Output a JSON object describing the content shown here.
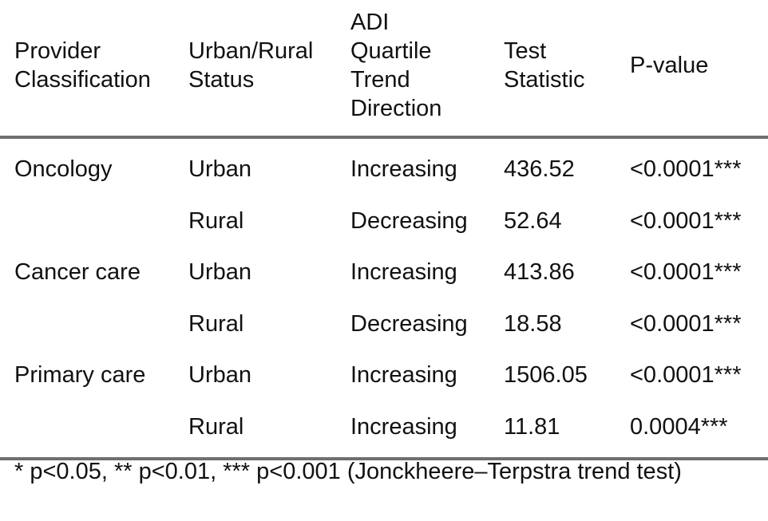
{
  "table": {
    "headers": [
      "Provider Classification",
      "Urban/Rural Status",
      "ADI Quartile Trend Direction",
      "Test Statistic",
      "P-value"
    ],
    "rows": [
      [
        "Oncology",
        "Urban",
        "Increasing",
        "436.52",
        "<0.0001***"
      ],
      [
        "",
        "Rural",
        "Decreasing",
        "52.64",
        "<0.0001***"
      ],
      [
        "Cancer care",
        "Urban",
        "Increasing",
        "413.86",
        "<0.0001***"
      ],
      [
        "",
        "Rural",
        "Decreasing",
        "18.58",
        "<0.0001***"
      ],
      [
        "Primary care",
        "Urban",
        "Increasing",
        "1506.05",
        "<0.0001***"
      ],
      [
        "",
        "Rural",
        "Increasing",
        "11.81",
        "0.0004***"
      ]
    ]
  },
  "footnote": "* p<0.05, ** p<0.01, *** p<0.001 (Jonckheere–Terpstra trend test)"
}
